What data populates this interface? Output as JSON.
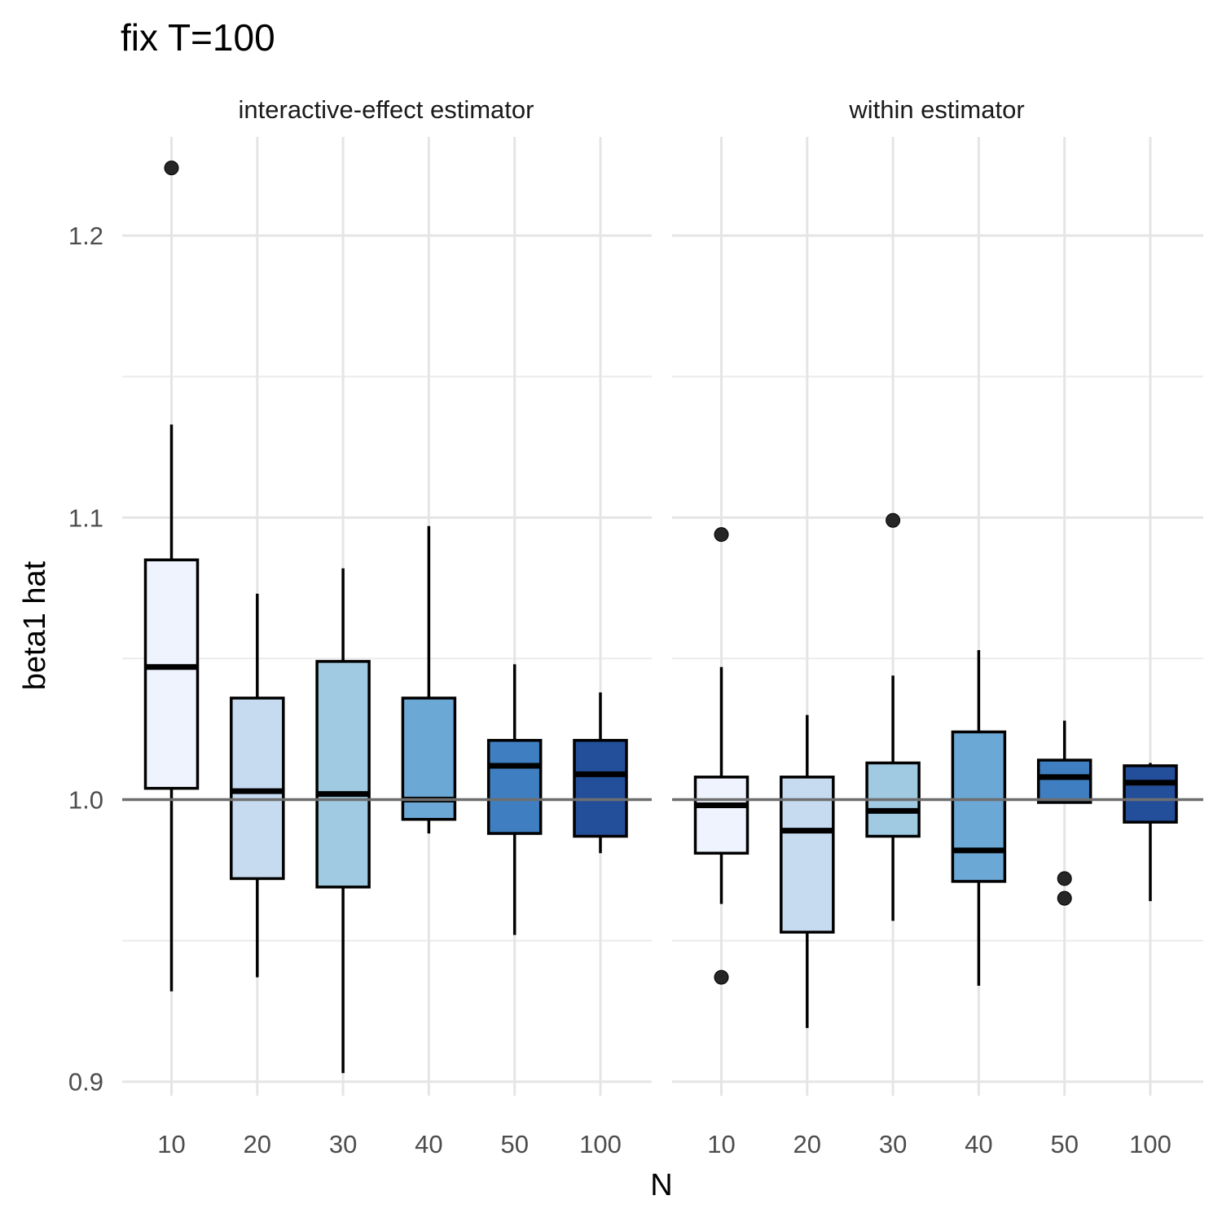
{
  "chart_data": {
    "type": "boxplot",
    "title": "fix T=100",
    "xlabel": "N",
    "ylabel": "beta1 hat",
    "ylim": [
      0.895,
      1.235
    ],
    "y_ticks": [
      0.9,
      1.0,
      1.1,
      1.2
    ],
    "y_tick_labels": [
      "0.9",
      "1.0",
      "1.1",
      "1.2"
    ],
    "reference_line": 1.0,
    "grid": true,
    "categories": [
      "10",
      "20",
      "30",
      "40",
      "50",
      "100"
    ],
    "fill_colors": [
      "#eef3fd",
      "#c6daf0",
      "#9fcae2",
      "#6ba8d6",
      "#3f7fc1",
      "#234f9a"
    ],
    "panels": [
      {
        "label": "interactive-effect estimator",
        "boxes": [
          {
            "category": "10",
            "lower_whisker": 0.932,
            "q1": 1.004,
            "median": 1.047,
            "q3": 1.085,
            "upper_whisker": 1.133,
            "outliers": [
              1.224
            ]
          },
          {
            "category": "20",
            "lower_whisker": 0.937,
            "q1": 0.972,
            "median": 1.003,
            "q3": 1.036,
            "upper_whisker": 1.073,
            "outliers": []
          },
          {
            "category": "30",
            "lower_whisker": 0.903,
            "q1": 0.969,
            "median": 1.002,
            "q3": 1.049,
            "upper_whisker": 1.082,
            "outliers": []
          },
          {
            "category": "40",
            "lower_whisker": 0.988,
            "q1": 0.993,
            "median": 1.0,
            "q3": 1.036,
            "upper_whisker": 1.097,
            "outliers": []
          },
          {
            "category": "50",
            "lower_whisker": 0.952,
            "q1": 0.988,
            "median": 1.012,
            "q3": 1.021,
            "upper_whisker": 1.048,
            "outliers": []
          },
          {
            "category": "100",
            "lower_whisker": 0.981,
            "q1": 0.987,
            "median": 1.009,
            "q3": 1.021,
            "upper_whisker": 1.038,
            "outliers": []
          }
        ]
      },
      {
        "label": "within estimator",
        "boxes": [
          {
            "category": "10",
            "lower_whisker": 0.963,
            "q1": 0.981,
            "median": 0.998,
            "q3": 1.008,
            "upper_whisker": 1.047,
            "outliers": [
              1.094,
              0.937
            ]
          },
          {
            "category": "20",
            "lower_whisker": 0.919,
            "q1": 0.953,
            "median": 0.989,
            "q3": 1.008,
            "upper_whisker": 1.03,
            "outliers": []
          },
          {
            "category": "30",
            "lower_whisker": 0.957,
            "q1": 0.987,
            "median": 0.996,
            "q3": 1.013,
            "upper_whisker": 1.044,
            "outliers": [
              1.099
            ]
          },
          {
            "category": "40",
            "lower_whisker": 0.934,
            "q1": 0.971,
            "median": 0.982,
            "q3": 1.024,
            "upper_whisker": 1.053,
            "outliers": []
          },
          {
            "category": "50",
            "lower_whisker": 0.999,
            "q1": 0.999,
            "median": 1.008,
            "q3": 1.014,
            "upper_whisker": 1.028,
            "outliers": [
              0.972,
              0.965
            ]
          },
          {
            "category": "100",
            "lower_whisker": 0.964,
            "q1": 0.992,
            "median": 1.006,
            "q3": 1.012,
            "upper_whisker": 1.013,
            "outliers": []
          }
        ]
      }
    ]
  }
}
